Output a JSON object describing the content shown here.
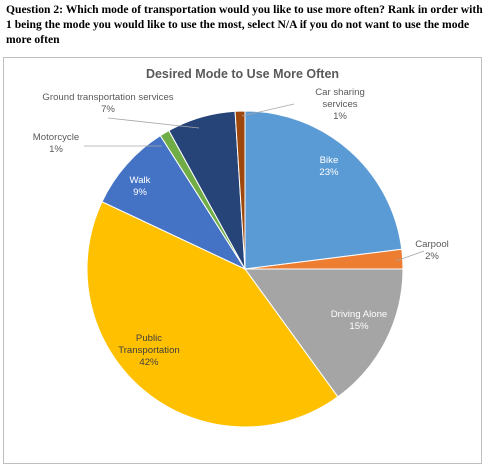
{
  "question": "Question 2: Which mode of transportation would you like to use more often? Rank in order with 1 being the mode you would like to use the most, select N/A if you do not want to use the mode more often",
  "chart_data": {
    "type": "pie",
    "title": "Desired Mode to Use More Often",
    "slices": [
      {
        "name": "Bike",
        "label_lines": [
          "Bike"
        ],
        "value": 23,
        "pct": "23%",
        "color": "#5b9bd5"
      },
      {
        "name": "Carpool",
        "label_lines": [
          "Carpool"
        ],
        "value": 2,
        "pct": "2%",
        "color": "#ed7d31"
      },
      {
        "name": "Driving Alone",
        "label_lines": [
          "Driving Alone"
        ],
        "value": 15,
        "pct": "15%",
        "color": "#a5a5a5"
      },
      {
        "name": "Public Transportation",
        "label_lines": [
          "Public",
          "Transportation"
        ],
        "value": 42,
        "pct": "42%",
        "color": "#ffc000"
      },
      {
        "name": "Walk",
        "label_lines": [
          "Walk"
        ],
        "value": 9,
        "pct": "9%",
        "color": "#4472c4"
      },
      {
        "name": "Motorcycle",
        "label_lines": [
          "Motorcycle"
        ],
        "value": 1,
        "pct": "1%",
        "color": "#70ad47"
      },
      {
        "name": "Ground transportation services",
        "label_lines": [
          "Ground transportation services"
        ],
        "value": 7,
        "pct": "7%",
        "color": "#264478"
      },
      {
        "name": "Car sharing services",
        "label_lines": [
          "Car sharing",
          "services"
        ],
        "value": 1,
        "pct": "1%",
        "color": "#9e480e"
      }
    ]
  }
}
